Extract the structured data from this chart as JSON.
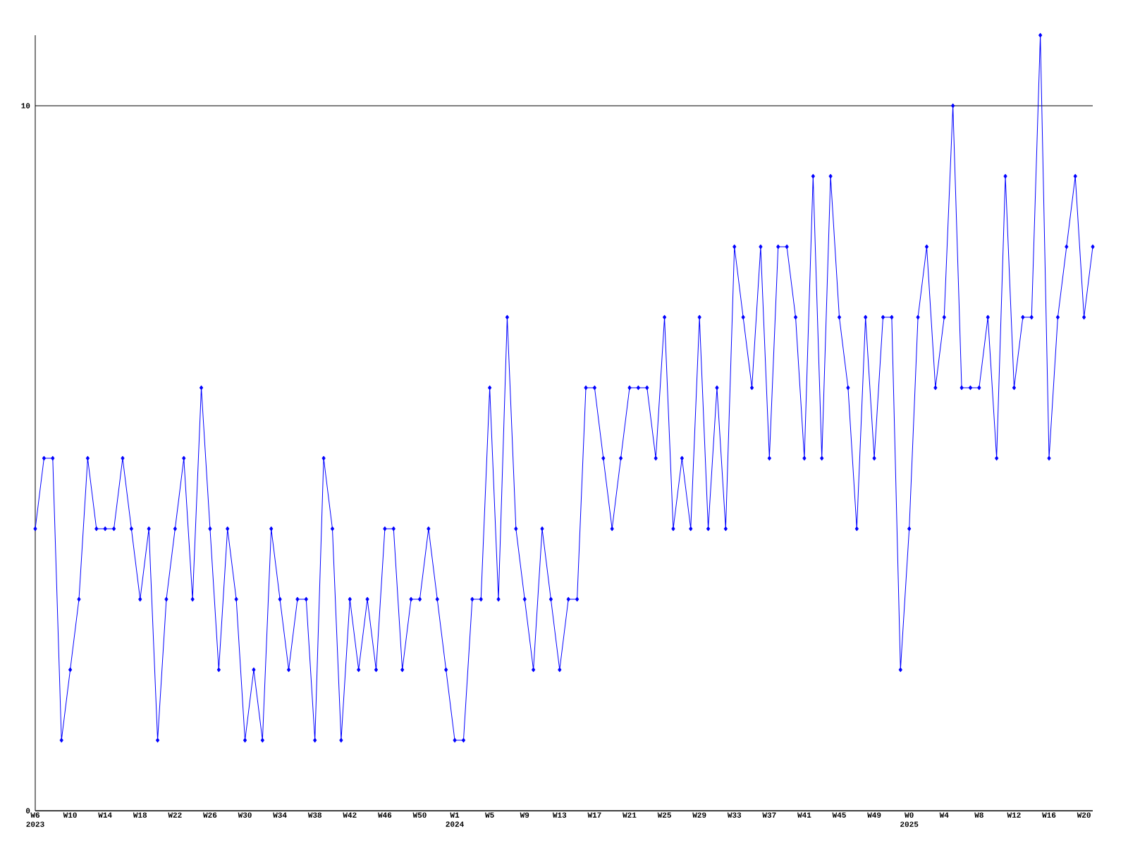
{
  "chart_data": {
    "type": "line",
    "categories": [
      "W6",
      null,
      null,
      null,
      "W10",
      null,
      null,
      null,
      "W14",
      null,
      null,
      null,
      "W18",
      null,
      null,
      null,
      "W22",
      null,
      null,
      null,
      "W26",
      null,
      null,
      null,
      "W30",
      null,
      null,
      null,
      "W34",
      null,
      null,
      null,
      "W38",
      null,
      null,
      null,
      "W42",
      null,
      null,
      null,
      "W46",
      null,
      null,
      null,
      "W50",
      null,
      null,
      null,
      "W1",
      null,
      null,
      null,
      "W5",
      null,
      null,
      null,
      "W9",
      null,
      null,
      null,
      "W13",
      null,
      null,
      null,
      "W17",
      null,
      null,
      null,
      "W21",
      null,
      null,
      null,
      "W25",
      null,
      null,
      null,
      "W29",
      null,
      null,
      null,
      "W33",
      null,
      null,
      null,
      "W37",
      null,
      null,
      null,
      "W41",
      null,
      null,
      null,
      "W45",
      null,
      null,
      null,
      "W49",
      null,
      null,
      null,
      "W0",
      null,
      null,
      null,
      "W4",
      null,
      null,
      null,
      "W8",
      null,
      null,
      null,
      "W12",
      null,
      null,
      null,
      "W16",
      null,
      null,
      null,
      "W20",
      null
    ],
    "values": [
      4,
      5,
      5,
      1,
      2,
      3,
      5,
      4,
      4,
      4,
      5,
      4,
      3,
      4,
      1,
      3,
      4,
      5,
      3,
      6,
      4,
      2,
      4,
      3,
      1,
      2,
      1,
      4,
      3,
      2,
      3,
      3,
      1,
      5,
      4,
      1,
      3,
      2,
      3,
      2,
      4,
      4,
      2,
      3,
      3,
      4,
      3,
      2,
      1,
      1,
      3,
      3,
      6,
      3,
      7,
      4,
      3,
      2,
      4,
      3,
      2,
      3,
      3,
      6,
      6,
      5,
      4,
      5,
      6,
      6,
      6,
      5,
      7,
      4,
      5,
      4,
      7,
      4,
      6,
      4,
      8,
      7,
      6,
      8,
      5,
      8,
      8,
      7,
      5,
      9,
      5,
      9,
      7,
      6,
      4,
      7,
      5,
      7,
      7,
      2,
      4,
      7,
      8,
      6,
      7,
      10,
      6,
      6,
      6,
      7,
      5,
      9,
      6,
      7,
      7,
      11,
      5,
      7,
      8,
      9,
      7,
      8
    ],
    "color": "#0000ff",
    "marker": "diamond",
    "grid": "y",
    "ylim": [
      0,
      11
    ],
    "yticks": [
      0,
      10
    ],
    "annotations": [
      "2023",
      "2024",
      "2025"
    ]
  }
}
